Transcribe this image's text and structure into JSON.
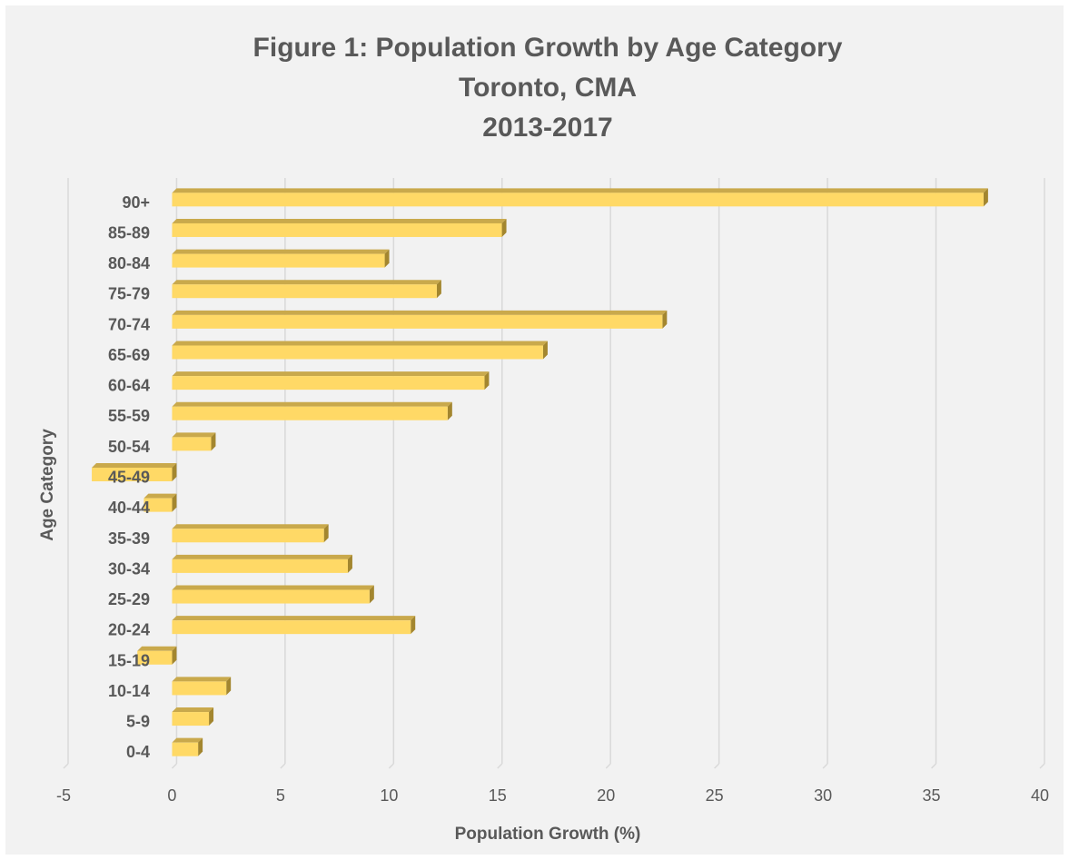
{
  "chart_data": {
    "type": "bar",
    "orientation": "horizontal",
    "title": "Figure 1: Population Growth by Age Category",
    "subtitle_lines": [
      "Toronto, CMA",
      "2013-2017"
    ],
    "xlabel": "Population Growth (%)",
    "ylabel": "Age Category",
    "categories": [
      "0-4",
      "5-9",
      "10-14",
      "15-19",
      "20-24",
      "25-29",
      "30-34",
      "35-39",
      "40-44",
      "45-49",
      "50-54",
      "55-59",
      "60-64",
      "65-69",
      "70-74",
      "75-79",
      "80-84",
      "85-89",
      "90+"
    ],
    "values": [
      1.2,
      1.7,
      2.5,
      -1.6,
      11.0,
      9.1,
      8.1,
      7.0,
      -1.3,
      -3.7,
      1.8,
      12.7,
      14.4,
      17.1,
      22.6,
      12.2,
      9.8,
      15.2,
      37.4
    ],
    "xlim": [
      -5,
      40
    ],
    "xticks": [
      "-5",
      "0",
      "5",
      "10",
      "15",
      "20",
      "25",
      "30",
      "35",
      "40"
    ],
    "grid": true,
    "legend": "none",
    "colors": {
      "bar_face": "#ffd966",
      "bar_top": "#c9a94c",
      "bar_side": "#a3862f",
      "gridline": "#d9d9d9",
      "text": "#595959",
      "background": "#f2f2f2"
    }
  }
}
